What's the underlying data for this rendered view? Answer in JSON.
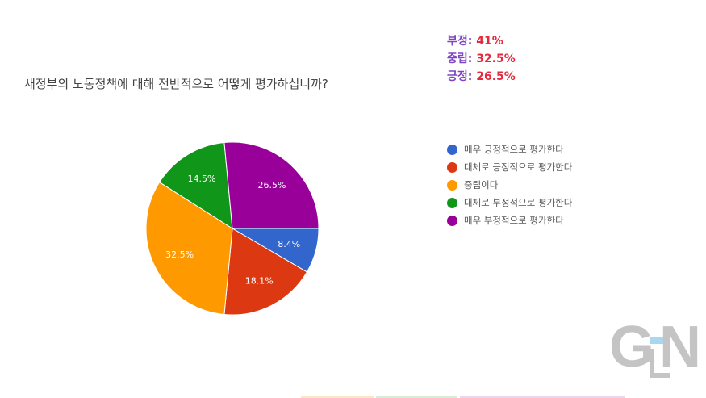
{
  "chart_data": {
    "type": "pie",
    "title": "새정부의 노동정책에 대해 전반적으로 어떻게 평가하십니까?",
    "start_angle_deg": 90,
    "direction": "clockwise",
    "legend_position": "right",
    "slices": [
      {
        "label": "매우 긍정적으로 평가한다",
        "value": 8.4,
        "display": "8.4%",
        "color": "#3366cc"
      },
      {
        "label": "대체로 긍정적으로 평가한다",
        "value": 18.1,
        "display": "18.1%",
        "color": "#dc3912"
      },
      {
        "label": "중립이다",
        "value": 32.5,
        "display": "32.5%",
        "color": "#ff9900"
      },
      {
        "label": "대체로 부정적으로 평가한다",
        "value": 14.5,
        "display": "14.5%",
        "color": "#109618"
      },
      {
        "label": "매우 부정적으로 평가한다",
        "value": 26.5,
        "display": "26.5%",
        "color": "#990099"
      }
    ]
  },
  "summary": [
    {
      "key": "부정:",
      "value": "41%"
    },
    {
      "key": "중립:",
      "value": "32.5%"
    },
    {
      "key": "긍정:",
      "value": "26.5%"
    }
  ],
  "logo": {
    "text": "GEN",
    "accent_color": "#a8d8f0"
  }
}
